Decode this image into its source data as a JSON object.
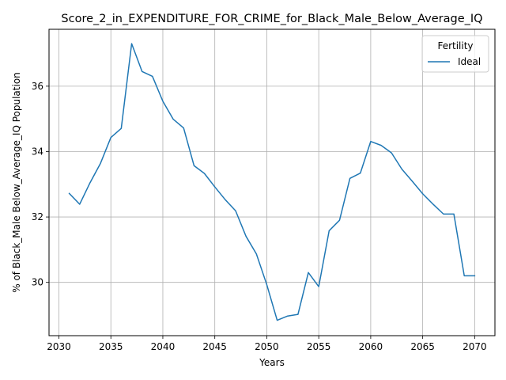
{
  "chart_data": {
    "type": "line",
    "title": "Score_2_in_EXPENDITURE_FOR_CRIME_for_Black_Male_Below_Average_IQ",
    "xlabel": "Years",
    "ylabel": "% of Black_Male Below_Average_IQ Population",
    "xlim": [
      2029.05,
      2071.95
    ],
    "ylim": [
      28.37,
      37.74
    ],
    "xticks": [
      2030,
      2035,
      2040,
      2045,
      2050,
      2055,
      2060,
      2065,
      2070
    ],
    "yticks": [
      30,
      32,
      34,
      36
    ],
    "grid": true,
    "legend": {
      "title": "Fertility",
      "position": "top-right"
    },
    "series": [
      {
        "name": "Ideal",
        "color": "#1f77b4",
        "x": [
          2031,
          2032,
          2033,
          2034,
          2035,
          2036,
          2037,
          2038,
          2039,
          2040,
          2041,
          2042,
          2043,
          2044,
          2045,
          2046,
          2047,
          2048,
          2049,
          2050,
          2051,
          2052,
          2053,
          2054,
          2055,
          2056,
          2057,
          2058,
          2059,
          2060,
          2061,
          2062,
          2063,
          2064,
          2065,
          2066,
          2067,
          2068,
          2069,
          2070
        ],
        "y": [
          32.72,
          32.39,
          33.05,
          33.64,
          34.43,
          34.71,
          37.3,
          36.45,
          36.3,
          35.54,
          34.99,
          34.72,
          33.57,
          33.33,
          32.92,
          32.53,
          32.19,
          31.41,
          30.87,
          29.93,
          28.84,
          28.97,
          29.02,
          30.3,
          29.87,
          31.58,
          31.9,
          33.18,
          33.34,
          34.31,
          34.19,
          33.96,
          33.46,
          33.09,
          32.71,
          32.39,
          32.09,
          32.09,
          30.2,
          30.2
        ]
      }
    ]
  }
}
